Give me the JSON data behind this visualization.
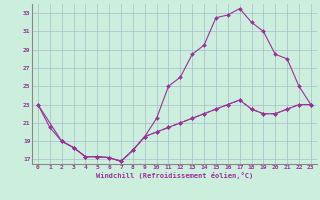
{
  "xlabel": "Windchill (Refroidissement éolien,°C)",
  "background_color": "#cceedd",
  "grid_color": "#aabbcc",
  "line_color": "#993399",
  "xlim": [
    -0.5,
    23.5
  ],
  "ylim": [
    16.5,
    34
  ],
  "yticks": [
    17,
    19,
    21,
    23,
    25,
    27,
    29,
    31,
    33
  ],
  "xticks": [
    0,
    1,
    2,
    3,
    4,
    5,
    6,
    7,
    8,
    9,
    10,
    11,
    12,
    13,
    14,
    15,
    16,
    17,
    18,
    19,
    20,
    21,
    22,
    23
  ],
  "line1_x": [
    0,
    1,
    2,
    3,
    4,
    5,
    6,
    7,
    8,
    9,
    10,
    11,
    12,
    13,
    14,
    15,
    16,
    17,
    18,
    19,
    20,
    21,
    22,
    23
  ],
  "line1_y": [
    23,
    20.5,
    19,
    18.3,
    17.3,
    17.3,
    17.2,
    16.8,
    18,
    19.5,
    21.5,
    25,
    26,
    28.5,
    29.5,
    32.5,
    32.8,
    33.5,
    32,
    31,
    28.5,
    28,
    25,
    23
  ],
  "line2_x": [
    0,
    2,
    3,
    4,
    5,
    6,
    7,
    8,
    9,
    10,
    11,
    12,
    13,
    14,
    15,
    16,
    17,
    18,
    19,
    20,
    21,
    22,
    23
  ],
  "line2_y": [
    23,
    19,
    18.3,
    17.3,
    17.3,
    17.2,
    16.8,
    18,
    19.5,
    20,
    20.5,
    21,
    21.5,
    22,
    22.5,
    23,
    23.5,
    22.5,
    22,
    22,
    22.5,
    23,
    23
  ],
  "line3_x": [
    2,
    3,
    4,
    5,
    6,
    7,
    8,
    9,
    10,
    11,
    12,
    13,
    14,
    15,
    16,
    17,
    18,
    19,
    20,
    21,
    22,
    23
  ],
  "line3_y": [
    19,
    18.3,
    17.3,
    17.3,
    17.2,
    16.8,
    18,
    19.5,
    20,
    20.5,
    21,
    21.5,
    22,
    22.5,
    23,
    23.5,
    22.5,
    22,
    22,
    22.5,
    23,
    23
  ]
}
